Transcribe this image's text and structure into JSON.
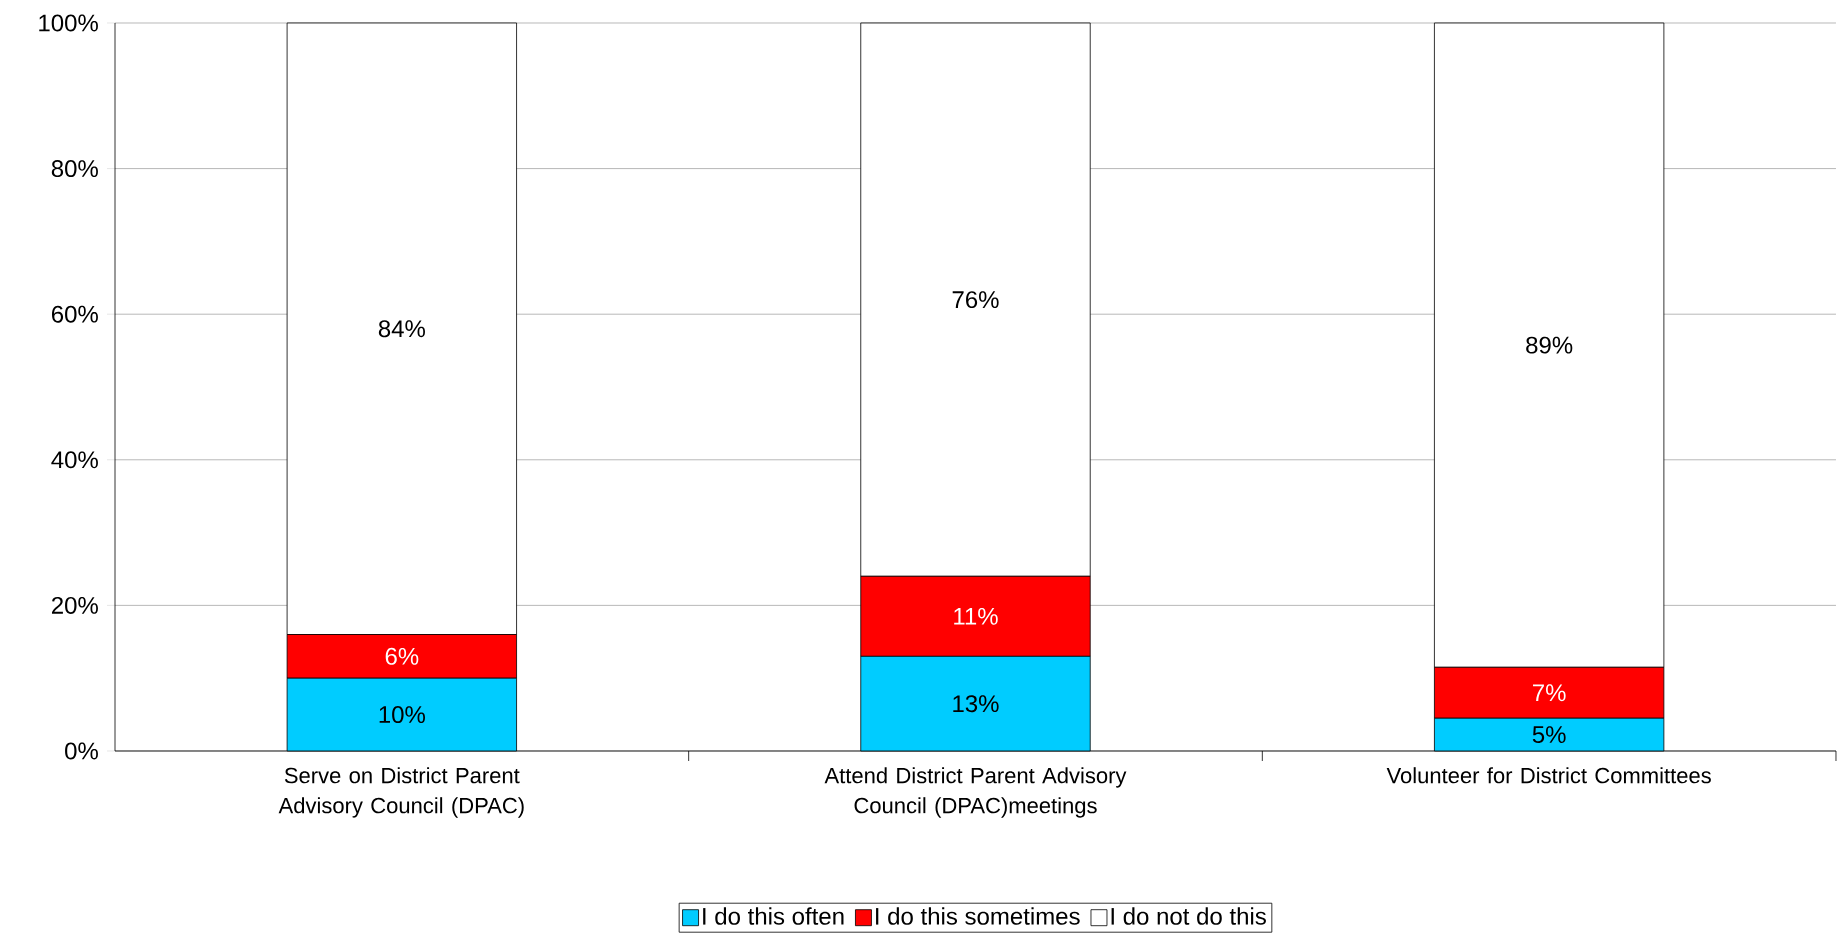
{
  "chart_data": {
    "type": "bar",
    "stacked": true,
    "categories": [
      "Serve on District Parent Advisory Council (DPAC)",
      "Attend District Parent Advisory Council (DPAC)meetings",
      "Volunteer for District Committees"
    ],
    "series": [
      {
        "name": "I do this often",
        "color": "#00ccff",
        "values": [
          10,
          13,
          4.5
        ],
        "value_labels": [
          "10%",
          "13%",
          "5%"
        ]
      },
      {
        "name": "I do this sometimes",
        "color": "#ff0000",
        "values": [
          6,
          11,
          7
        ],
        "value_labels": [
          "6%",
          "11%",
          "7%"
        ]
      },
      {
        "name": "I do not do this",
        "color": "#ffffff",
        "values": [
          84,
          76,
          88.5
        ],
        "value_labels": [
          "84%",
          "76%",
          "89%"
        ]
      }
    ],
    "ylim": [
      0,
      100
    ],
    "yticks": [
      {
        "value": 0,
        "label": "0%"
      },
      {
        "value": 20,
        "label": "20%"
      },
      {
        "value": 40,
        "label": "40%"
      },
      {
        "value": 60,
        "label": "60%"
      },
      {
        "value": 80,
        "label": "80%"
      },
      {
        "value": 100,
        "label": "100%"
      }
    ],
    "grid": "y",
    "legend": "bottom"
  }
}
